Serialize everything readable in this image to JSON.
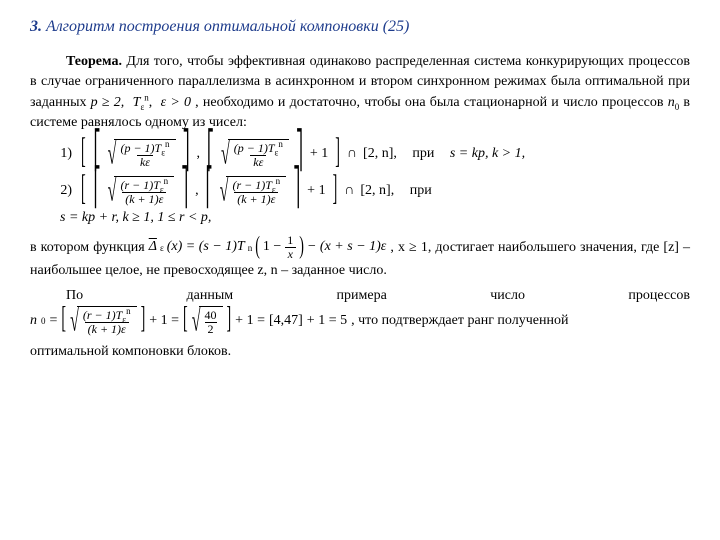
{
  "heading": {
    "number": "3.",
    "title": "Алгоритм построения оптимальной компоновки (25)",
    "color": "#1e3c8c"
  },
  "theorem": {
    "label": "Теорема.",
    "text": "Для того, чтобы эффективная одинаково распределенная система конкурирующих процессов в случае ограниченного параллелизма в асинхронном и втором синхронном режимах была оптимальной при заданных ",
    "cond_tail": ", необходимо и достаточно, чтобы она была стационарной и число процессов ",
    "n0": "n",
    "n0sub": "0",
    "after_n0": " в системе равнялось одному из чисел:",
    "p_ge_2": "p ≥ 2,",
    "T_eps_n": "T",
    "eps_sub": "ε",
    "n_sup": "n",
    "eps_gt_0": "ε > 0"
  },
  "formulas": {
    "idx1": "1)",
    "idx2": "2)",
    "num1": "(p − 1)T",
    "den1": "kε",
    "plus1": "+ 1",
    "intersect": "∩",
    "twon": "[2, n],",
    "pri": "при",
    "cond1": "s = kp,  k > 1,",
    "num2": "(r − 1)T",
    "den2": "(k + 1)ε"
  },
  "cond2": "s = kp + r,   k ≥ 1,  1 ≤ r  <  p,",
  "para2": {
    "lead": "в   котором   функция   ",
    "delta": "Δ",
    "eps": "ε",
    "of_x": "(x) = (s − 1)T",
    "n_sup": "n",
    "one": "1",
    "x": "x",
    "tail": "− (x + s − 1)ε ",
    "after": ",     x ≥ 1,     достигает наибольшего значения, где [z] – наибольшее целое, не превосходящее z, n – заданное число."
  },
  "para3_words": [
    "По",
    "данным",
    "примера",
    "число",
    "процессов"
  ],
  "final": {
    "n0": "n",
    "sub0": "0",
    "eq": " = ",
    "num": "(r − 1)T",
    "den": "(k + 1)ε",
    "plus1": " + 1 = ",
    "frac2_num": "40",
    "frac2_den": "2",
    "mid": " + 1 = ",
    "val": "[4,47]",
    "plus1b": " + 1 = 5",
    "tail": ", что подтверждает ранг полученной"
  },
  "lastline": "оптимальной компоновки блоков."
}
